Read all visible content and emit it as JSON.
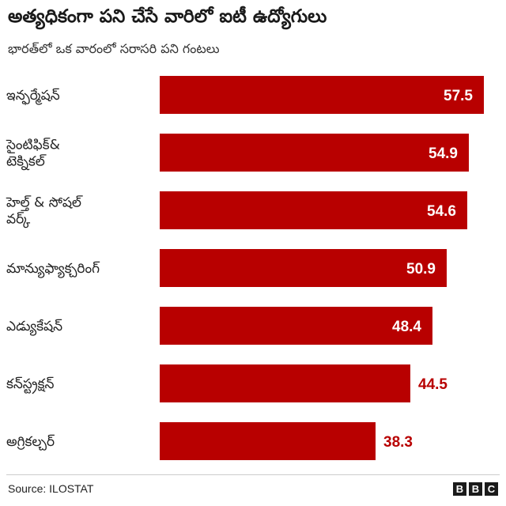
{
  "header": {
    "title": "అత్యధికంగా పని చేసే వారిలో ఐటీ ఉద్యోగులు",
    "subtitle": "భారత్‌లో ఒక వారంలో సరాసరి పని గంటలు"
  },
  "footer": {
    "source": "Source: ILOSTAT",
    "logo_letters": [
      "B",
      "B",
      "C"
    ]
  },
  "colors": {
    "bar": "#b80000",
    "label_inside": "#ffffff",
    "label_outside": "#b80000",
    "category_text": "#222222"
  },
  "chart_data": {
    "type": "bar",
    "orientation": "horizontal",
    "title": "అత్యధికంగా పని చేసే వారిలో ఐటీ ఉద్యోగులు",
    "subtitle": "భారత్‌లో ఒక వారంలో సరాసరి పని గంటలు",
    "categories": [
      [
        "ఇన్ఫర్మేషన్"
      ],
      [
        "సైంటిఫిక్&",
        "టెక్నికల్"
      ],
      [
        "హెల్త్ & సోషల్",
        "వర్క్"
      ],
      [
        "మాన్యుఫ్యాక్చరింగ్"
      ],
      [
        "ఎడ్యుకేషన్"
      ],
      [
        "కన్‌స్ట్రక్షన్"
      ],
      [
        "అగ్రికల్చర్"
      ]
    ],
    "values": [
      57.5,
      54.9,
      54.6,
      50.9,
      48.4,
      44.5,
      38.3
    ],
    "value_labels": [
      "57.5",
      "54.9",
      "54.6",
      "50.9",
      "48.4",
      "44.5",
      "38.3"
    ],
    "xlim": [
      0,
      57.5
    ],
    "grid": false,
    "legend": "none",
    "source": "Source: ILOSTAT"
  }
}
